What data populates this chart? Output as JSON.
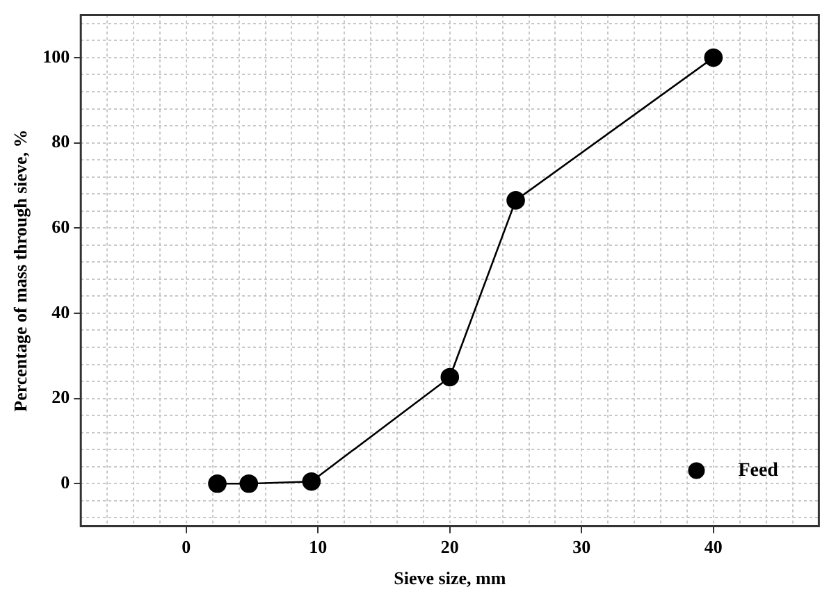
{
  "chart_data": {
    "type": "line",
    "xlabel": "Sieve size, mm",
    "ylabel": "Percentage of mass through sieve, %",
    "x": [
      2.36,
      4.75,
      9.5,
      20,
      25,
      40
    ],
    "series": [
      {
        "name": "Feed",
        "color": "#000000",
        "values": [
          0,
          0,
          0.5,
          25,
          66.5,
          100
        ]
      }
    ],
    "xlim": [
      -8,
      48
    ],
    "xticks": [
      {
        "value": -8,
        "label": null
      },
      {
        "value": -6,
        "label": null
      },
      {
        "value": -4,
        "label": null
      },
      {
        "value": -2,
        "label": null
      },
      0,
      {
        "value": 2,
        "label": null
      },
      {
        "value": 4,
        "label": null
      },
      {
        "value": 6,
        "label": null
      },
      {
        "value": 8,
        "label": null
      },
      10,
      {
        "value": 12,
        "label": null
      },
      {
        "value": 14,
        "label": null
      },
      {
        "value": 16,
        "label": null
      },
      {
        "value": 18,
        "label": null
      },
      20,
      {
        "value": 22,
        "label": null
      },
      {
        "value": 24,
        "label": null
      },
      {
        "value": 26,
        "label": null
      },
      {
        "value": 28,
        "label": null
      },
      30,
      {
        "value": 32,
        "label": null
      },
      {
        "value": 34,
        "label": null
      },
      {
        "value": 36,
        "label": null
      },
      {
        "value": 38,
        "label": null
      },
      40,
      {
        "value": 42,
        "label": null
      },
      {
        "value": 44,
        "label": null
      },
      {
        "value": 46,
        "label": null
      },
      {
        "value": 48,
        "label": null
      }
    ],
    "ylim": [
      -10,
      110
    ],
    "yticks": [
      {
        "value": -8,
        "label": null
      },
      {
        "value": -4,
        "label": null
      },
      0,
      {
        "value": 4,
        "label": null
      },
      {
        "value": 8,
        "label": null
      },
      {
        "value": 12,
        "label": null
      },
      {
        "value": 16,
        "label": null
      },
      20,
      {
        "value": 24,
        "label": null
      },
      {
        "value": 28,
        "label": null
      },
      {
        "value": 32,
        "label": null
      },
      {
        "value": 36,
        "label": null
      },
      40,
      {
        "value": 44,
        "label": null
      },
      {
        "value": 48,
        "label": null
      },
      {
        "value": 52,
        "label": null
      },
      {
        "value": 56,
        "label": null
      },
      60,
      {
        "value": 64,
        "label": null
      },
      {
        "value": 68,
        "label": null
      },
      {
        "value": 72,
        "label": null
      },
      {
        "value": 76,
        "label": null
      },
      80,
      {
        "value": 84,
        "label": null
      },
      {
        "value": 88,
        "label": null
      },
      {
        "value": 92,
        "label": null
      },
      {
        "value": 96,
        "label": null
      },
      100,
      {
        "value": 104,
        "label": null
      },
      {
        "value": 108,
        "label": null
      }
    ],
    "grid": true,
    "legend": "bottom right",
    "marker": "circle",
    "line_style": "solid"
  }
}
